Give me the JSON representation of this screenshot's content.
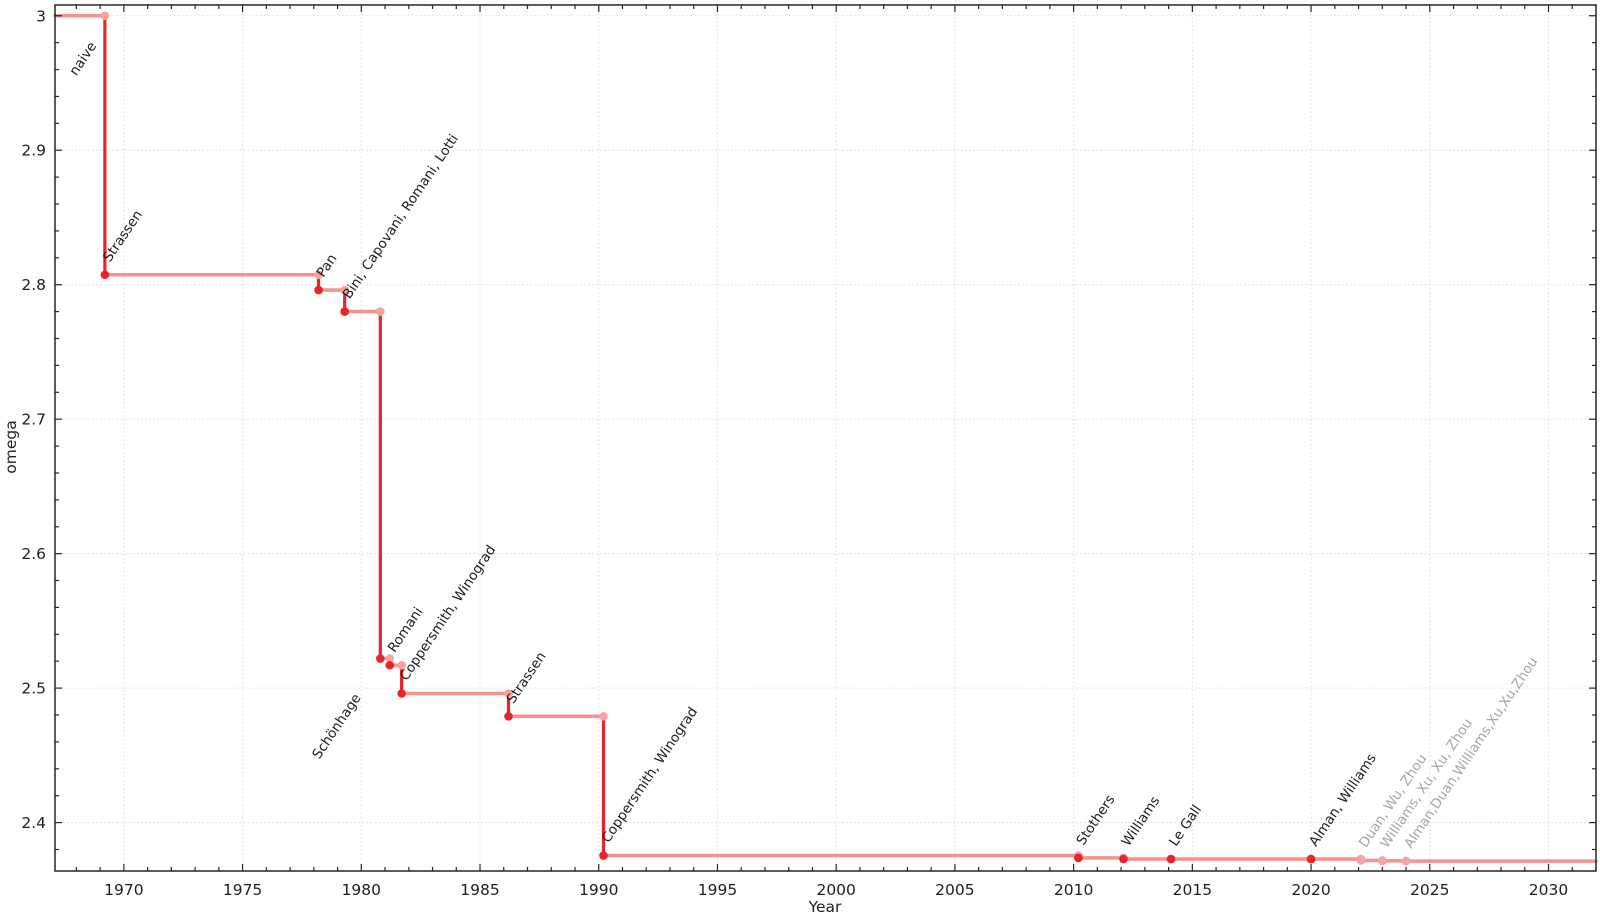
{
  "chart_data": {
    "type": "line",
    "subtype": "step-post",
    "title": "",
    "xlabel": "Year",
    "ylabel": "omega",
    "xlim": [
      1967.1,
      2032.0
    ],
    "ylim": [
      2.364,
      3.008
    ],
    "xticks": [
      1970,
      1975,
      1980,
      1985,
      1990,
      1995,
      2000,
      2005,
      2010,
      2015,
      2020,
      2025,
      2030
    ],
    "yticks": [
      2.4,
      2.5,
      2.6,
      2.7,
      2.8,
      2.9,
      3
    ],
    "x_minor_step": 1,
    "y_minor_step": 0.02,
    "grid": true,
    "legend_position": "none",
    "colors": {
      "step_line": "#f59292",
      "drop_line": "#e8232a",
      "marker_record": "#e8232a",
      "marker_step": "#f8a3a1",
      "label_text": "#1c1c1c",
      "label_provisional": "#a6a6a6",
      "grid_line": "#dcdcdc",
      "axis": "#262626"
    },
    "start": {
      "omega": 3,
      "label": "naive",
      "label_side": "below",
      "label_dx": -8,
      "label_dy": 30
    },
    "points": [
      {
        "year": 1969.2,
        "omega": 2.8074,
        "label": "Strassen",
        "provisional": false
      },
      {
        "year": 1978.2,
        "omega": 2.796,
        "label": "Pan",
        "provisional": false
      },
      {
        "year": 1979.3,
        "omega": 2.78,
        "label": "Bini, Capovani, Romani, Lotti",
        "provisional": false
      },
      {
        "year": 1980.8,
        "omega": 2.522,
        "label": "Schönhage",
        "provisional": false,
        "label_side": "below",
        "label_dx": -19,
        "label_dy": 39
      },
      {
        "year": 1981.2,
        "omega": 2.517,
        "label": "Romani",
        "provisional": false
      },
      {
        "year": 1981.7,
        "omega": 2.496,
        "label": "Coppersmith, Winograd",
        "provisional": false
      },
      {
        "year": 1986.2,
        "omega": 2.479,
        "label": "Strassen",
        "provisional": false
      },
      {
        "year": 1990.2,
        "omega": 2.3755,
        "label": "Coppersmith, Winograd",
        "provisional": false
      },
      {
        "year": 2010.2,
        "omega": 2.3737,
        "label": "Stothers",
        "provisional": false
      },
      {
        "year": 2012.1,
        "omega": 2.3729,
        "label": "Williams",
        "provisional": false
      },
      {
        "year": 2014.1,
        "omega": 2.37286,
        "label": "Le Gall",
        "provisional": false
      },
      {
        "year": 2020.0,
        "omega": 2.37286,
        "label": "Alman, Williams",
        "provisional": false
      },
      {
        "year": 2022.1,
        "omega": 2.37188,
        "label": "Duan, Wu, Zhou",
        "provisional": true
      },
      {
        "year": 2023.0,
        "omega": 2.371552,
        "label": "Williams, Xu, Xu, Zhou",
        "provisional": true
      },
      {
        "year": 2024.0,
        "omega": 2.371339,
        "label": "Alman,Duan,Williams,Xu,Xu,Zhou",
        "provisional": true
      }
    ]
  }
}
